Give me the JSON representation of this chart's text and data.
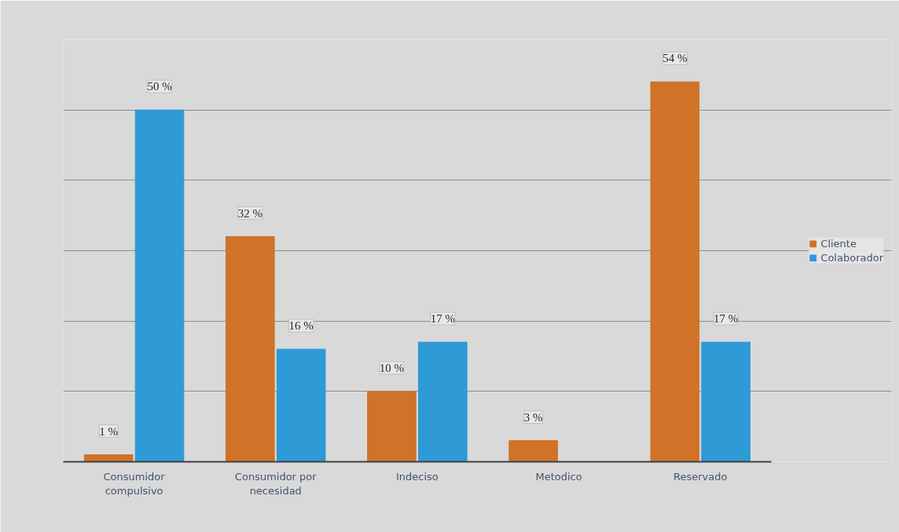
{
  "chart_data": {
    "type": "bar",
    "categories": [
      "Consumidor compulsivo",
      "Consumidor por necesidad",
      "Indeciso",
      "Metodico",
      "Reservado"
    ],
    "series": [
      {
        "name": "Cliente",
        "color": "#d07328",
        "values": [
          1,
          32,
          10,
          3,
          54
        ],
        "value_labels": [
          "1 %",
          "32 %",
          "10 %",
          "3 %",
          "54 %"
        ]
      },
      {
        "name": "Colaborador",
        "color": "#2e9ad6",
        "values": [
          50,
          16,
          17,
          null,
          17
        ],
        "value_labels": [
          "50 %",
          "16 %",
          "17 %",
          null,
          "17 %"
        ]
      }
    ],
    "ylim": [
      0,
      60
    ],
    "yticks": [
      {
        "value": 0,
        "label": null
      },
      {
        "value": 10,
        "label": null
      },
      {
        "value": 20,
        "label": null
      },
      {
        "value": 30,
        "label": null
      },
      {
        "value": 40,
        "label": null
      },
      {
        "value": 50,
        "label": null
      },
      {
        "value": 60,
        "label": null
      }
    ],
    "tick_labels": "x",
    "grid": "y",
    "legend": "right"
  }
}
